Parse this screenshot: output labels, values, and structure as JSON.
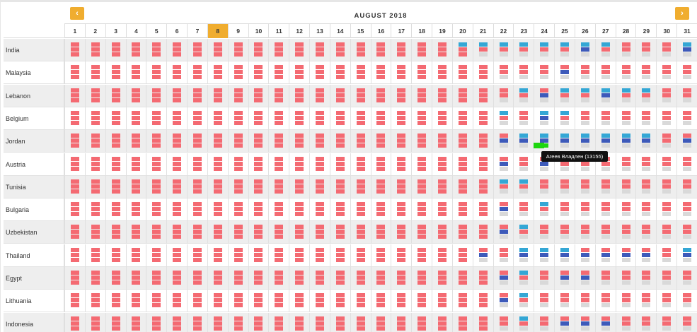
{
  "month_title": "AUGUST 2018",
  "nav": {
    "prev_icon": "‹",
    "next_icon": "›"
  },
  "today_index": 7,
  "colors": {
    "red": "#f46a72",
    "blue": "#3d5aba",
    "cyan": "#34a7d5",
    "gray": "#d9d9d9",
    "green": "#1ed60f"
  },
  "days": [
    "1",
    "2",
    "3",
    "4",
    "5",
    "6",
    "7",
    "8",
    "9",
    "10",
    "11",
    "12",
    "13",
    "14",
    "15",
    "16",
    "17",
    "18",
    "19",
    "20",
    "21",
    "22",
    "23",
    "24",
    "25",
    "26",
    "27",
    "28",
    "29",
    "30",
    "31"
  ],
  "rows": [
    {
      "label": "India",
      "cells": {
        "20": [
          "c",
          "r",
          "r"
        ],
        "21": [
          "c",
          "r",
          "g"
        ],
        "22": [
          "c",
          "r",
          "g"
        ],
        "23": [
          "c",
          "r",
          "g"
        ],
        "24": [
          "c",
          "r",
          "g"
        ],
        "25": [
          "c",
          "r",
          "g"
        ],
        "26": [
          "c",
          "b",
          "g"
        ],
        "27": [
          "c",
          "r",
          "g"
        ],
        "28": [
          "r",
          "r",
          "g"
        ],
        "29": [
          "r",
          "r",
          "g"
        ],
        "30": [
          "r",
          "r",
          "g"
        ],
        "31": [
          "c",
          "b",
          "g"
        ]
      }
    },
    {
      "label": "Malaysia",
      "cells": {
        "22": [
          "r",
          "r",
          "g"
        ],
        "23": [
          "r",
          "r",
          "g"
        ],
        "24": [
          "r",
          "r",
          "g"
        ],
        "25": [
          "r",
          "b",
          "g"
        ],
        "26": [
          "r",
          "r",
          "g"
        ],
        "27": [
          "r",
          "r",
          "g"
        ],
        "28": [
          "r",
          "r",
          "g"
        ],
        "29": [
          "r",
          "r",
          "g"
        ],
        "30": [
          "r",
          "r",
          "g"
        ],
        "31": [
          "r",
          "r",
          "g"
        ]
      }
    },
    {
      "label": "Lebanon",
      "cells": {
        "22": [
          "r",
          "r",
          "g"
        ],
        "23": [
          "c",
          "r",
          "g"
        ],
        "24": [
          "r",
          "b",
          "g"
        ],
        "25": [
          "c",
          "r",
          "g"
        ],
        "26": [
          "c",
          "r",
          "g"
        ],
        "27": [
          "c",
          "b",
          "g"
        ],
        "28": [
          "c",
          "r",
          "g"
        ],
        "29": [
          "c",
          "r",
          "g"
        ],
        "30": [
          "r",
          "r",
          "g"
        ],
        "31": [
          "r",
          "r",
          "g"
        ]
      }
    },
    {
      "label": "Belgium",
      "cells": {
        "22": [
          "c",
          "r",
          "g"
        ],
        "23": [
          "r",
          "r",
          "g"
        ],
        "24": [
          "c",
          "b",
          "g"
        ],
        "25": [
          "c",
          "r",
          "g"
        ],
        "26": [
          "r",
          "r",
          "g"
        ],
        "27": [
          "r",
          "r",
          "g"
        ],
        "28": [
          "r",
          "r",
          "g"
        ],
        "29": [
          "r",
          "r",
          "g"
        ],
        "30": [
          "r",
          "r",
          "g"
        ],
        "31": [
          "r",
          "r",
          "g"
        ]
      }
    },
    {
      "label": "Jordan",
      "cells": {
        "22": [
          "r",
          "b",
          "g"
        ],
        "23": [
          "c",
          "b",
          "g"
        ],
        "24": [
          "c",
          "b",
          "e"
        ],
        "25": [
          "c",
          "b",
          "g"
        ],
        "26": [
          "c",
          "b",
          "g"
        ],
        "27": [
          "c",
          "b",
          "g"
        ],
        "28": [
          "c",
          "b",
          "g"
        ],
        "29": [
          "c",
          "b",
          "g"
        ],
        "30": [
          "r",
          "r",
          "g"
        ],
        "31": [
          "r",
          "b",
          "g"
        ]
      }
    },
    {
      "label": "Austria",
      "cells": {
        "22": [
          "r",
          "b",
          "g"
        ],
        "23": [
          "r",
          "r",
          "g"
        ],
        "24": [
          "r",
          "b",
          "g"
        ],
        "25": [
          "r",
          "r",
          "g"
        ],
        "26": [
          "r",
          "r",
          "g"
        ],
        "27": [
          "r",
          "r",
          "g"
        ],
        "28": [
          "r",
          "r",
          "g"
        ],
        "29": [
          "r",
          "r",
          "g"
        ],
        "30": [
          "r",
          "r",
          "g"
        ],
        "31": [
          "r",
          "r",
          "g"
        ]
      }
    },
    {
      "label": "Tunisia",
      "cells": {
        "22": [
          "c",
          "r",
          "g"
        ],
        "23": [
          "c",
          "r",
          "g"
        ],
        "24": [
          "r",
          "r",
          "g"
        ],
        "25": [
          "r",
          "r",
          "g"
        ],
        "26": [
          "r",
          "r",
          "g"
        ],
        "27": [
          "r",
          "r",
          "g"
        ],
        "28": [
          "r",
          "r",
          "g"
        ],
        "29": [
          "r",
          "r",
          "g"
        ],
        "30": [
          "r",
          "r",
          "g"
        ],
        "31": [
          "r",
          "r",
          "g"
        ]
      }
    },
    {
      "label": "Bulgaria",
      "cells": {
        "22": [
          "r",
          "b",
          "g"
        ],
        "23": [
          "r",
          "r",
          "g"
        ],
        "24": [
          "c",
          "r",
          "g"
        ],
        "25": [
          "r",
          "r",
          "g"
        ],
        "26": [
          "r",
          "r",
          "g"
        ],
        "27": [
          "r",
          "r",
          "g"
        ],
        "28": [
          "r",
          "r",
          "g"
        ],
        "29": [
          "r",
          "r",
          "g"
        ],
        "30": [
          "r",
          "r",
          "g"
        ],
        "31": [
          "r",
          "r",
          "g"
        ]
      }
    },
    {
      "label": "Uzbekistan",
      "cells": {
        "22": [
          "r",
          "b",
          "g"
        ],
        "23": [
          "c",
          "r",
          "g"
        ],
        "24": [
          "r",
          "r",
          "g"
        ],
        "25": [
          "r",
          "r",
          "g"
        ],
        "26": [
          "r",
          "r",
          "g"
        ],
        "27": [
          "r",
          "r",
          "g"
        ],
        "28": [
          "r",
          "r",
          "g"
        ],
        "29": [
          "r",
          "r",
          "g"
        ],
        "30": [
          "r",
          "r",
          "g"
        ],
        "31": [
          "r",
          "r",
          "g"
        ]
      }
    },
    {
      "label": "Thailand",
      "cells": {
        "21": [
          "r",
          "b",
          "g"
        ],
        "22": [
          "r",
          "r",
          "g"
        ],
        "23": [
          "c",
          "b",
          "g"
        ],
        "24": [
          "c",
          "b",
          "g"
        ],
        "25": [
          "c",
          "b",
          "g"
        ],
        "26": [
          "r",
          "b",
          "g"
        ],
        "27": [
          "r",
          "b",
          "g"
        ],
        "28": [
          "r",
          "b",
          "g"
        ],
        "29": [
          "r",
          "b",
          "g"
        ],
        "30": [
          "r",
          "r",
          "g"
        ],
        "31": [
          "c",
          "b",
          "g"
        ]
      }
    },
    {
      "label": "Egypt",
      "cells": {
        "22": [
          "r",
          "b",
          "g"
        ],
        "23": [
          "c",
          "r",
          "g"
        ],
        "24": [
          "r",
          "r",
          "g"
        ],
        "25": [
          "r",
          "b",
          "g"
        ],
        "26": [
          "r",
          "b",
          "g"
        ],
        "27": [
          "r",
          "r",
          "g"
        ],
        "28": [
          "r",
          "r",
          "g"
        ],
        "29": [
          "r",
          "r",
          "g"
        ],
        "30": [
          "r",
          "r",
          "g"
        ],
        "31": [
          "r",
          "r",
          "g"
        ]
      }
    },
    {
      "label": "Lithuania",
      "cells": {
        "22": [
          "r",
          "b",
          "g"
        ],
        "23": [
          "c",
          "r",
          "g"
        ],
        "24": [
          "r",
          "r",
          "g"
        ],
        "25": [
          "r",
          "r",
          "g"
        ],
        "26": [
          "r",
          "r",
          "g"
        ],
        "27": [
          "r",
          "r",
          "g"
        ],
        "28": [
          "r",
          "r",
          "g"
        ],
        "29": [
          "r",
          "r",
          "g"
        ],
        "30": [
          "r",
          "r",
          "g"
        ],
        "31": [
          "r",
          "r",
          "g"
        ]
      }
    },
    {
      "label": "Indonesia",
      "cells": {
        "22": [
          "r",
          "r",
          "g"
        ],
        "23": [
          "c",
          "r",
          "g"
        ],
        "24": [
          "r",
          "r",
          "g"
        ],
        "25": [
          "r",
          "b",
          "g"
        ],
        "26": [
          "r",
          "b",
          "g"
        ],
        "27": [
          "r",
          "b",
          "g"
        ],
        "28": [
          "r",
          "r",
          "g"
        ],
        "29": [
          "r",
          "r",
          "g"
        ],
        "30": [
          "r",
          "r",
          "g"
        ],
        "31": [
          "r",
          "r",
          "g"
        ]
      }
    }
  ],
  "tooltip": {
    "text": "Агеев Владлен (13155)"
  }
}
